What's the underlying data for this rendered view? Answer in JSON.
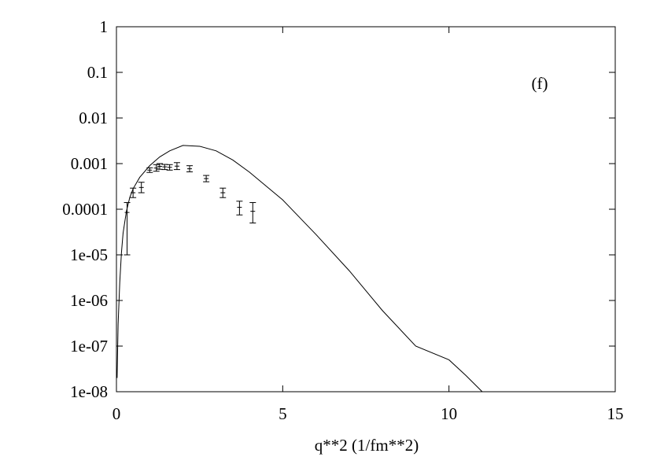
{
  "chart_data": {
    "type": "scatter",
    "title": "",
    "xlabel": "q**2 (1/fm**2)",
    "ylabel": "",
    "xlim": [
      0,
      15
    ],
    "ylim": [
      1e-08,
      1
    ],
    "y_scale": "log",
    "grid": false,
    "annotation": "(f)",
    "x_ticks": [
      0,
      5,
      10,
      15
    ],
    "x_tick_labels": [
      "0",
      "5",
      "10",
      "15"
    ],
    "y_ticks": [
      1e-08,
      1e-07,
      1e-06,
      1e-05,
      0.0001,
      0.001,
      0.01,
      0.1,
      1
    ],
    "y_tick_labels": [
      "1e-08",
      "1e-07",
      "1e-06",
      "1e-05",
      "0.0001",
      "0.001",
      "0.01",
      "0.1",
      "1"
    ],
    "series": [
      {
        "kind": "errorbar",
        "points": [
          {
            "x": 0.32,
            "y": 8.5e-05,
            "ylo": 1e-05,
            "yhi": 0.00014
          },
          {
            "x": 0.5,
            "y": 0.00023,
            "ylo": 0.00018,
            "yhi": 0.00029
          },
          {
            "x": 0.75,
            "y": 0.0003,
            "ylo": 0.00023,
            "yhi": 0.00039
          },
          {
            "x": 1.0,
            "y": 0.00072,
            "ylo": 0.00064,
            "yhi": 0.00081
          },
          {
            "x": 1.2,
            "y": 0.0008,
            "ylo": 0.00068,
            "yhi": 0.00095
          },
          {
            "x": 1.3,
            "y": 0.00087,
            "ylo": 0.00075,
            "yhi": 0.001
          },
          {
            "x": 1.45,
            "y": 0.00085,
            "ylo": 0.00074,
            "yhi": 0.00096
          },
          {
            "x": 1.6,
            "y": 0.00083,
            "ylo": 0.00072,
            "yhi": 0.00095
          },
          {
            "x": 1.82,
            "y": 0.00088,
            "ylo": 0.00074,
            "yhi": 0.00105
          },
          {
            "x": 2.2,
            "y": 0.00077,
            "ylo": 0.00066,
            "yhi": 0.0009
          },
          {
            "x": 2.7,
            "y": 0.00047,
            "ylo": 0.0004,
            "yhi": 0.00055
          },
          {
            "x": 3.2,
            "y": 0.00023,
            "ylo": 0.00018,
            "yhi": 0.00029
          },
          {
            "x": 3.7,
            "y": 0.00011,
            "ylo": 7.5e-05,
            "yhi": 0.00015
          },
          {
            "x": 4.1,
            "y": 9e-05,
            "ylo": 5e-05,
            "yhi": 0.00014
          }
        ]
      },
      {
        "kind": "line",
        "points": [
          {
            "x": 0.02,
            "y": 2e-08
          },
          {
            "x": 0.05,
            "y": 3e-07
          },
          {
            "x": 0.1,
            "y": 2.5e-06
          },
          {
            "x": 0.15,
            "y": 1.1e-05
          },
          {
            "x": 0.2,
            "y": 3e-05
          },
          {
            "x": 0.3,
            "y": 9e-05
          },
          {
            "x": 0.4,
            "y": 0.00018
          },
          {
            "x": 0.5,
            "y": 0.00028
          },
          {
            "x": 0.7,
            "y": 0.0005
          },
          {
            "x": 1.0,
            "y": 0.0009
          },
          {
            "x": 1.3,
            "y": 0.0014
          },
          {
            "x": 1.6,
            "y": 0.0019
          },
          {
            "x": 2.0,
            "y": 0.0025
          },
          {
            "x": 2.5,
            "y": 0.0024
          },
          {
            "x": 3.0,
            "y": 0.0019
          },
          {
            "x": 3.5,
            "y": 0.0012
          },
          {
            "x": 4.0,
            "y": 0.00065
          },
          {
            "x": 5.0,
            "y": 0.00016
          },
          {
            "x": 6.0,
            "y": 2.8e-05
          },
          {
            "x": 7.0,
            "y": 4.5e-06
          },
          {
            "x": 8.0,
            "y": 6e-07
          },
          {
            "x": 9.0,
            "y": 1e-07
          },
          {
            "x": 10.0,
            "y": 5e-08
          },
          {
            "x": 10.5,
            "y": 2.3e-08
          },
          {
            "x": 11.0,
            "y": 1e-08
          }
        ]
      }
    ]
  }
}
